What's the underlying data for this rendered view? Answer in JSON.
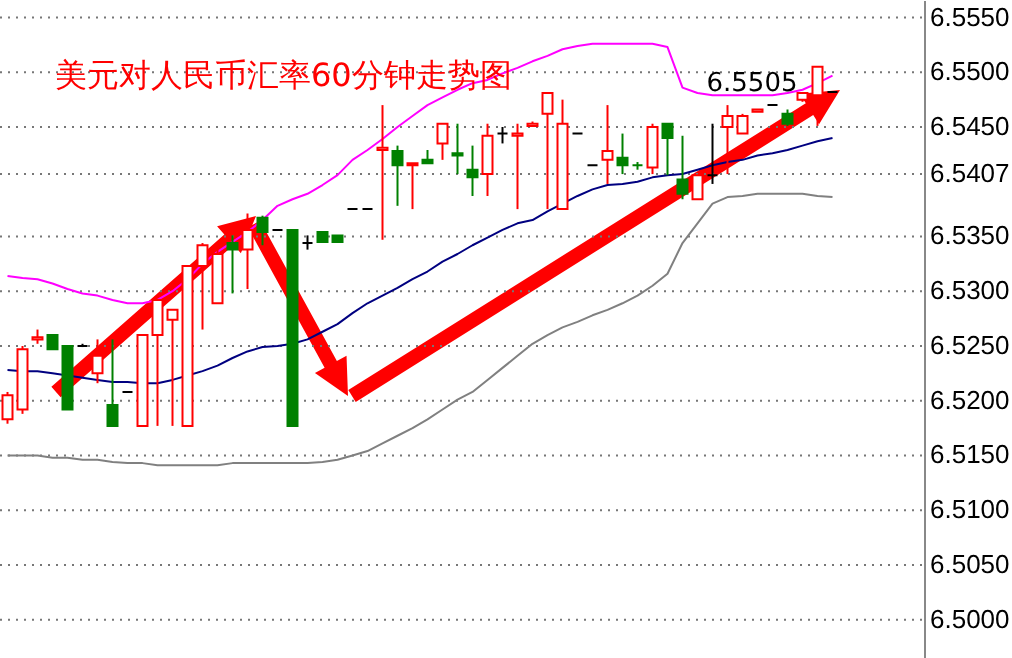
{
  "chart_data": {
    "type": "candlestick",
    "title": "美元对人民币汇率60分钟走势图",
    "categories": [
      null,
      null,
      null,
      null,
      null,
      null,
      null,
      null,
      null,
      null,
      null,
      null,
      null,
      null,
      null,
      null,
      null,
      null,
      null,
      null,
      null,
      null,
      null,
      null,
      null,
      null,
      null,
      null,
      null,
      null,
      null,
      null,
      null,
      null,
      null,
      null,
      null,
      null,
      null,
      null,
      null,
      null,
      null,
      null,
      null,
      null,
      null,
      null,
      null,
      null,
      null,
      null,
      null,
      null,
      null,
      null
    ],
    "ohlc": [
      [
        6.5183,
        6.5208,
        6.5179,
        6.5205
      ],
      [
        6.5192,
        6.525,
        6.5188,
        6.5247
      ],
      [
        6.5256,
        6.5265,
        6.5252,
        6.5258
      ],
      [
        6.526,
        6.526,
        6.5247,
        6.5247
      ],
      [
        6.525,
        6.525,
        6.5192,
        6.5192
      ],
      [
        6.525,
        6.5252,
        6.5249,
        6.525
      ],
      [
        6.5225,
        6.5256,
        6.5216,
        6.5241
      ],
      [
        6.5196,
        6.5256,
        6.5177,
        6.5177
      ],
      [
        6.5208,
        6.5208,
        6.5208,
        6.5208
      ],
      [
        6.5177,
        6.526,
        6.5177,
        6.526
      ],
      [
        6.526,
        6.5292,
        6.5177,
        6.5292
      ],
      [
        6.5274,
        6.5283,
        6.5177,
        6.5283
      ],
      [
        6.5177,
        6.5323,
        6.5177,
        6.5323
      ],
      [
        6.5323,
        6.5344,
        6.5265,
        6.5342
      ],
      [
        6.5289,
        6.5338,
        6.5289,
        6.5334
      ],
      [
        6.5344,
        6.5351,
        6.5298,
        6.5338
      ],
      [
        6.5338,
        6.5371,
        6.5302,
        6.5356
      ],
      [
        6.5367,
        6.5369,
        6.5342,
        6.5354
      ],
      [
        6.5356,
        6.5356,
        6.5356,
        6.5356
      ],
      [
        6.5356,
        6.5356,
        6.5177,
        6.5177
      ],
      [
        6.5344,
        6.5351,
        6.5338,
        6.5344
      ],
      [
        6.5354,
        6.5354,
        6.5345,
        6.5345
      ],
      [
        6.5351,
        6.5351,
        6.5345,
        6.5345
      ],
      [
        6.5375,
        6.5375,
        6.5375,
        6.5375
      ],
      [
        6.5375,
        6.5375,
        6.5375,
        6.5375
      ],
      [
        6.5429,
        6.547,
        6.5347,
        6.5431
      ],
      [
        6.5428,
        6.5433,
        6.5378,
        6.5415
      ],
      [
        6.5415,
        6.5417,
        6.5375,
        6.5417
      ],
      [
        6.542,
        6.5429,
        6.5417,
        6.5417
      ],
      [
        6.5435,
        6.5453,
        6.542,
        6.5453
      ],
      [
        6.5426,
        6.5453,
        6.5407,
        6.5424
      ],
      [
        6.5411,
        6.5433,
        6.5387,
        6.5404
      ],
      [
        6.5407,
        6.5453,
        6.5387,
        6.5442
      ],
      [
        6.5444,
        6.545,
        6.5435,
        6.5444
      ],
      [
        6.5442,
        6.5453,
        6.5375,
        6.5444
      ],
      [
        6.5451,
        6.5455,
        6.545,
        6.5453
      ],
      [
        6.5462,
        6.5481,
        6.5375,
        6.5481
      ],
      [
        6.5375,
        6.5475,
        6.5375,
        6.5453
      ],
      [
        6.5444,
        6.5444,
        6.5444,
        6.5444
      ],
      [
        6.5415,
        6.5415,
        6.5415,
        6.5415
      ],
      [
        6.542,
        6.547,
        6.5398,
        6.5428
      ],
      [
        6.5422,
        6.5444,
        6.5407,
        6.5415
      ],
      [
        6.5415,
        6.5418,
        6.5411,
        6.5415
      ],
      [
        6.5413,
        6.5453,
        6.5407,
        6.545
      ],
      [
        6.5453,
        6.5453,
        6.5406,
        6.544
      ],
      [
        6.5402,
        6.5442,
        6.5384,
        6.5389
      ],
      [
        6.5384,
        6.5406,
        6.5384,
        6.5406
      ],
      [
        6.5406,
        6.5453,
        6.5398,
        6.5406
      ],
      [
        6.545,
        6.547,
        6.5407,
        6.546
      ],
      [
        6.5444,
        6.5462,
        6.5444,
        6.546
      ],
      [
        6.5464,
        6.5466,
        6.5464,
        6.5466
      ],
      [
        6.547,
        6.547,
        6.547,
        6.547
      ],
      [
        6.5462,
        6.5466,
        6.5451,
        6.5453
      ],
      [
        6.5475,
        6.5482,
        6.5473,
        6.5481
      ],
      [
        6.5479,
        6.5505,
        6.5451,
        6.5505
      ],
      [
        6.5482,
        6.5482,
        6.5482,
        6.5482
      ]
    ],
    "colors": [
      "#ff0000",
      "#ff0000",
      "#ff0000",
      "#008000",
      "#008000",
      "#000000",
      "#ff0000",
      "#008000",
      "#000000",
      "#ff0000",
      "#ff0000",
      "#ff0000",
      "#ff0000",
      "#ff0000",
      "#ff0000",
      "#008000",
      "#ff0000",
      "#008000",
      "#000000",
      "#008000",
      "#000000",
      "#008000",
      "#008000",
      "#000000",
      "#000000",
      "#ff0000",
      "#008000",
      "#ff0000",
      "#008000",
      "#ff0000",
      "#008000",
      "#008000",
      "#ff0000",
      "#000000",
      "#ff0000",
      "#ff0000",
      "#ff0000",
      "#ff0000",
      "#000000",
      "#000000",
      "#ff0000",
      "#008000",
      "#008000",
      "#ff0000",
      "#008000",
      "#008000",
      "#ff0000",
      "#000000",
      "#ff0000",
      "#ff0000",
      "#ff0000",
      "#000000",
      "#008000",
      "#ff0000",
      "#ff0000",
      "#000000"
    ],
    "series": [
      {
        "type": "line",
        "color": "#ff00ff",
        "values": [
          6.5314,
          6.5312,
          6.5311,
          6.5307,
          6.5302,
          6.5298,
          6.5296,
          6.5292,
          6.5289,
          6.5289,
          6.5292,
          6.53,
          6.5311,
          6.5325,
          6.5336,
          6.5345,
          6.5354,
          6.5365,
          6.5378,
          6.5384,
          6.5389,
          6.5397,
          6.5406,
          6.542,
          6.5429,
          6.5439,
          6.545,
          6.546,
          6.547,
          6.5477,
          6.5484,
          6.549,
          6.5493,
          6.5499,
          6.5504,
          6.551,
          6.5515,
          6.5521,
          6.5524,
          6.5526,
          6.5526,
          6.5526,
          6.5526,
          6.5526,
          6.5523,
          6.5486,
          6.5481,
          6.5479,
          6.5479,
          6.5479,
          6.5479,
          6.5479,
          6.5481,
          6.5484,
          6.549,
          6.5497
        ]
      },
      {
        "type": "line",
        "color": "#000080",
        "values": [
          6.5228,
          6.5227,
          6.5227,
          6.5225,
          6.5223,
          6.5221,
          6.5219,
          6.5217,
          6.5217,
          6.5216,
          6.5216,
          6.5219,
          6.5223,
          6.5227,
          6.5232,
          6.5239,
          6.5245,
          6.5249,
          6.525,
          6.5252,
          6.5256,
          6.5263,
          6.527,
          6.528,
          6.5289,
          6.5296,
          6.5303,
          6.5311,
          6.5318,
          6.5327,
          6.5334,
          6.5342,
          6.5349,
          6.5356,
          6.5362,
          6.5365,
          6.5373,
          6.538,
          6.5387,
          6.5393,
          6.5397,
          6.5398,
          6.54,
          6.5404,
          6.5406,
          6.5407,
          6.5411,
          6.5415,
          6.5418,
          6.542,
          6.5424,
          6.5426,
          6.5429,
          6.5433,
          6.5437,
          6.544
        ]
      },
      {
        "type": "line",
        "color": "#808080",
        "values": [
          6.515,
          6.515,
          6.515,
          6.5148,
          6.5148,
          6.5146,
          6.5146,
          6.5144,
          6.5143,
          6.5143,
          6.5141,
          6.5141,
          6.5141,
          6.5141,
          6.5141,
          6.5143,
          6.5143,
          6.5143,
          6.5143,
          6.5143,
          6.5143,
          6.5144,
          6.5146,
          6.515,
          6.5154,
          6.5161,
          6.5168,
          6.5175,
          6.5183,
          6.5192,
          6.5201,
          6.5208,
          6.5219,
          6.523,
          6.5241,
          6.5252,
          6.526,
          6.5267,
          6.5272,
          6.5278,
          6.5283,
          6.5289,
          6.5296,
          6.5305,
          6.5316,
          6.5344,
          6.5362,
          6.538,
          6.5386,
          6.5387,
          6.5389,
          6.5389,
          6.5389,
          6.5389,
          6.5387,
          6.5386
        ]
      }
    ],
    "annotations": [
      "6.5505"
    ],
    "ylim": [
      6.4965,
      6.5566
    ],
    "yticks": [
      {
        "value": 6.5,
        "label": "6.5000"
      },
      {
        "value": 6.505,
        "label": "6.5050"
      },
      {
        "value": 6.51,
        "label": "6.5100"
      },
      {
        "value": 6.515,
        "label": "6.5150"
      },
      {
        "value": 6.52,
        "label": "6.5200"
      },
      {
        "value": 6.525,
        "label": "6.5250"
      },
      {
        "value": 6.53,
        "label": "6.5300"
      },
      {
        "value": 6.535,
        "label": "6.5350"
      },
      {
        "value": 6.5407,
        "label": "6.5407"
      },
      {
        "value": 6.545,
        "label": "6.5450"
      },
      {
        "value": 6.55,
        "label": "6.5500"
      },
      {
        "value": 6.555,
        "label": "6.5550"
      }
    ],
    "grid": "y"
  }
}
